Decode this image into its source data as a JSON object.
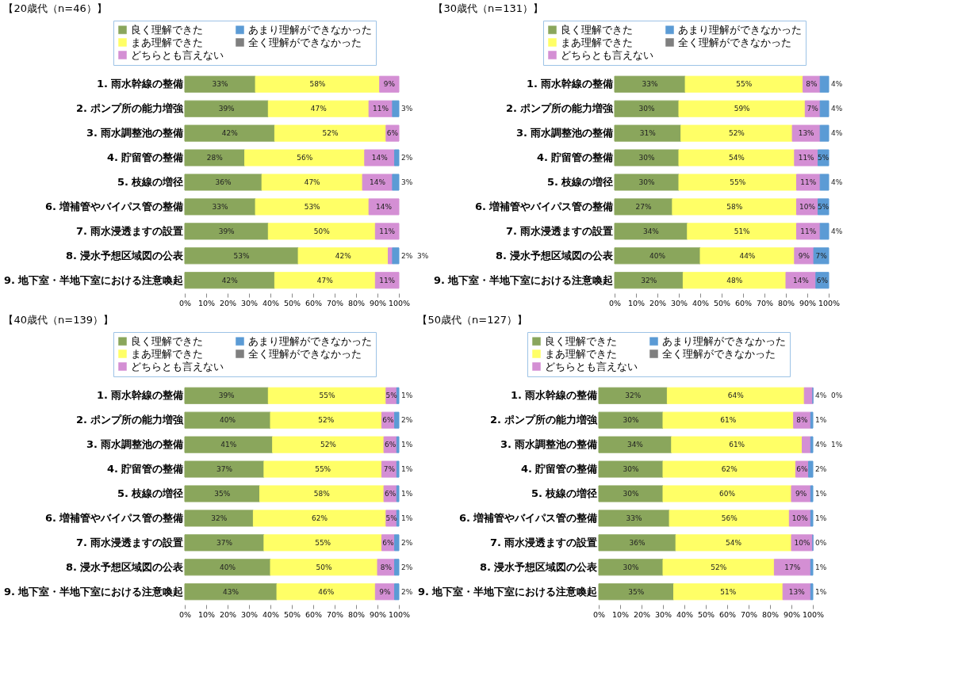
{
  "chart_data": [
    {
      "type": "bar",
      "orientation": "horizontal",
      "stacked": true,
      "title": "【20歳代（n=46）】",
      "legend": "top",
      "categories": [
        "1. 雨水幹線の整備",
        "2. ポンプ所の能力増強",
        "3. 雨水調整池の整備",
        "4. 貯留管の整備",
        "5. 枝線の増径",
        "6. 増補管やバイパス管の整備",
        "7. 雨水浸透ますの設置",
        "8. 浸水予想区域図の公表",
        "9. 地下室・半地下室における注意喚起"
      ],
      "xlim": [
        0,
        100
      ],
      "xticks": [
        {
          "value": 0,
          "label": "0%"
        },
        {
          "value": 10,
          "label": "10%"
        },
        {
          "value": 20,
          "label": "20%"
        },
        {
          "value": 30,
          "label": "30%"
        },
        {
          "value": 40,
          "label": "40%"
        },
        {
          "value": 50,
          "label": "50%"
        },
        {
          "value": 60,
          "label": "60%"
        },
        {
          "value": 70,
          "label": "70%"
        },
        {
          "value": 80,
          "label": "80%"
        },
        {
          "value": 90,
          "label": "90%"
        },
        {
          "value": 100,
          "label": "100%"
        }
      ],
      "series": [
        {
          "name": "良く理解できた",
          "color": "#8aa65c",
          "values": [
            33,
            39,
            42,
            28,
            36,
            33,
            39,
            53,
            42
          ],
          "value_labels": [
            "33%",
            "39%",
            "42%",
            "28%",
            "36%",
            "33%",
            "39%",
            "53%",
            "42%"
          ]
        },
        {
          "name": "まあ理解できた",
          "color": "#ffff66",
          "values": [
            58,
            47,
            52,
            56,
            47,
            53,
            50,
            42,
            47
          ],
          "value_labels": [
            "58%",
            "47%",
            "52%",
            "56%",
            "47%",
            "53%",
            "50%",
            "42%",
            "47%"
          ]
        },
        {
          "name": "どちらとも言えない",
          "color": "#d48fd4",
          "values": [
            9,
            11,
            6,
            14,
            14,
            14,
            11,
            2,
            11
          ],
          "value_labels": [
            "9%",
            "11%",
            "6%",
            "14%",
            "14%",
            "14%",
            "11%",
            "2%",
            "11%"
          ]
        },
        {
          "name": "あまり理解ができなかった",
          "color": "#5b9bd5",
          "values": [
            null,
            3,
            null,
            2,
            3,
            null,
            null,
            3,
            null
          ],
          "value_labels": [
            null,
            "3%",
            null,
            "2%",
            "3%",
            null,
            null,
            "3%",
            null
          ]
        },
        {
          "name": "全く理解ができなかった",
          "color": "#7f7f7f",
          "values": [
            null,
            null,
            null,
            null,
            null,
            null,
            null,
            null,
            null
          ]
        }
      ]
    },
    {
      "type": "bar",
      "orientation": "horizontal",
      "stacked": true,
      "title": "【30歳代（n=131）】",
      "legend": "top",
      "categories": [
        "1. 雨水幹線の整備",
        "2. ポンプ所の能力増強",
        "3. 雨水調整池の整備",
        "4. 貯留管の整備",
        "5. 枝線の増径",
        "6. 増補管やバイパス管の整備",
        "7. 雨水浸透ますの設置",
        "8. 浸水予想区域図の公表",
        "9. 地下室・半地下室における注意喚起"
      ],
      "xlim": [
        0,
        100
      ],
      "xticks": [
        {
          "value": 0,
          "label": "0%"
        },
        {
          "value": 10,
          "label": "10%"
        },
        {
          "value": 20,
          "label": "20%"
        },
        {
          "value": 30,
          "label": "30%"
        },
        {
          "value": 40,
          "label": "40%"
        },
        {
          "value": 50,
          "label": "50%"
        },
        {
          "value": 60,
          "label": "60%"
        },
        {
          "value": 70,
          "label": "70%"
        },
        {
          "value": 80,
          "label": "80%"
        },
        {
          "value": 90,
          "label": "90%"
        },
        {
          "value": 100,
          "label": "100%"
        }
      ],
      "series": [
        {
          "name": "良く理解できた",
          "color": "#8aa65c",
          "values": [
            33,
            30,
            31,
            30,
            30,
            27,
            34,
            40,
            32
          ],
          "value_labels": [
            "33%",
            "30%",
            "31%",
            "30%",
            "30%",
            "27%",
            "34%",
            "40%",
            "32%"
          ]
        },
        {
          "name": "まあ理解できた",
          "color": "#ffff66",
          "values": [
            55,
            59,
            52,
            54,
            55,
            58,
            51,
            44,
            48
          ],
          "value_labels": [
            "55%",
            "59%",
            "52%",
            "54%",
            "55%",
            "58%",
            "51%",
            "44%",
            "48%"
          ]
        },
        {
          "name": "どちらとも言えない",
          "color": "#d48fd4",
          "values": [
            8,
            7,
            13,
            11,
            11,
            10,
            11,
            9,
            14
          ],
          "value_labels": [
            "8%",
            "7%",
            "13%",
            "11%",
            "11%",
            "10%",
            "11%",
            "9%",
            "14%"
          ]
        },
        {
          "name": "あまり理解ができなかった",
          "color": "#5b9bd5",
          "values": [
            4,
            4,
            4,
            5,
            4,
            5,
            4,
            7,
            6
          ],
          "value_labels": [
            "4%",
            "4%",
            "4%",
            "5%",
            "4%",
            "5%",
            "4%",
            "7%",
            "6%"
          ]
        },
        {
          "name": "全く理解ができなかった",
          "color": "#7f7f7f",
          "values": [
            null,
            null,
            null,
            null,
            null,
            null,
            null,
            null,
            null
          ]
        }
      ]
    },
    {
      "type": "bar",
      "orientation": "horizontal",
      "stacked": true,
      "title": "【40歳代（n=139）】",
      "legend": "top",
      "categories": [
        "1. 雨水幹線の整備",
        "2. ポンプ所の能力増強",
        "3. 雨水調整池の整備",
        "4. 貯留管の整備",
        "5. 枝線の増径",
        "6. 増補管やバイパス管の整備",
        "7. 雨水浸透ますの設置",
        "8. 浸水予想区域図の公表",
        "9. 地下室・半地下室における注意喚起"
      ],
      "xlim": [
        0,
        100
      ],
      "xticks": [
        {
          "value": 0,
          "label": "0%"
        },
        {
          "value": 10,
          "label": "10%"
        },
        {
          "value": 20,
          "label": "20%"
        },
        {
          "value": 30,
          "label": "30%"
        },
        {
          "value": 40,
          "label": "40%"
        },
        {
          "value": 50,
          "label": "50%"
        },
        {
          "value": 60,
          "label": "60%"
        },
        {
          "value": 70,
          "label": "70%"
        },
        {
          "value": 80,
          "label": "80%"
        },
        {
          "value": 90,
          "label": "90%"
        },
        {
          "value": 100,
          "label": "100%"
        }
      ],
      "series": [
        {
          "name": "良く理解できた",
          "color": "#8aa65c",
          "values": [
            39,
            40,
            41,
            37,
            35,
            32,
            37,
            40,
            43
          ],
          "value_labels": [
            "39%",
            "40%",
            "41%",
            "37%",
            "35%",
            "32%",
            "37%",
            "40%",
            "43%"
          ]
        },
        {
          "name": "まあ理解できた",
          "color": "#ffff66",
          "values": [
            55,
            52,
            52,
            55,
            58,
            62,
            55,
            50,
            46
          ],
          "value_labels": [
            "55%",
            "52%",
            "52%",
            "55%",
            "58%",
            "62%",
            "55%",
            "50%",
            "46%"
          ]
        },
        {
          "name": "どちらとも言えない",
          "color": "#d48fd4",
          "values": [
            5,
            6,
            6,
            7,
            6,
            5,
            6,
            8,
            9
          ],
          "value_labels": [
            "5%",
            "6%",
            "6%",
            "7%",
            "6%",
            "5%",
            "6%",
            "8%",
            "9%"
          ]
        },
        {
          "name": "あまり理解ができなかった",
          "color": "#5b9bd5",
          "values": [
            1,
            2,
            1,
            1,
            1,
            1,
            2,
            2,
            2
          ],
          "value_labels": [
            "1%",
            "2%",
            "1%",
            "1%",
            "1%",
            "1%",
            "2%",
            "2%",
            "2%"
          ]
        },
        {
          "name": "全く理解ができなかった",
          "color": "#7f7f7f",
          "values": [
            null,
            null,
            null,
            null,
            null,
            null,
            null,
            null,
            null
          ]
        }
      ]
    },
    {
      "type": "bar",
      "orientation": "horizontal",
      "stacked": true,
      "title": "【50歳代（n=127）】",
      "legend": "top",
      "categories": [
        "1. 雨水幹線の整備",
        "2. ポンプ所の能力増強",
        "3. 雨水調整池の整備",
        "4. 貯留管の整備",
        "5. 枝線の増径",
        "6. 増補管やバイパス管の整備",
        "7. 雨水浸透ますの設置",
        "8. 浸水予想区域図の公表",
        "9. 地下室・半地下室における注意喚起"
      ],
      "xlim": [
        0,
        100
      ],
      "xticks": [
        {
          "value": 0,
          "label": "0%"
        },
        {
          "value": 10,
          "label": "10%"
        },
        {
          "value": 20,
          "label": "20%"
        },
        {
          "value": 30,
          "label": "30%"
        },
        {
          "value": 40,
          "label": "40%"
        },
        {
          "value": 50,
          "label": "50%"
        },
        {
          "value": 60,
          "label": "60%"
        },
        {
          "value": 70,
          "label": "70%"
        },
        {
          "value": 80,
          "label": "80%"
        },
        {
          "value": 90,
          "label": "90%"
        },
        {
          "value": 100,
          "label": "100%"
        }
      ],
      "series": [
        {
          "name": "良く理解できた",
          "color": "#8aa65c",
          "values": [
            32,
            30,
            34,
            30,
            30,
            33,
            36,
            30,
            35
          ],
          "value_labels": [
            "32%",
            "30%",
            "34%",
            "30%",
            "30%",
            "33%",
            "36%",
            "30%",
            "35%"
          ]
        },
        {
          "name": "まあ理解できた",
          "color": "#ffff66",
          "values": [
            64,
            61,
            61,
            62,
            60,
            56,
            54,
            52,
            51
          ],
          "value_labels": [
            "64%",
            "61%",
            "61%",
            "62%",
            "60%",
            "56%",
            "54%",
            "52%",
            "51%"
          ]
        },
        {
          "name": "どちらとも言えない",
          "color": "#d48fd4",
          "values": [
            4,
            8,
            4,
            6,
            9,
            10,
            10,
            17,
            13
          ],
          "value_labels": [
            "4%",
            "8%",
            "4%",
            "6%",
            "9%",
            "10%",
            "10%",
            "17%",
            "13%"
          ]
        },
        {
          "name": "あまり理解ができなかった",
          "color": "#5b9bd5",
          "values": [
            0,
            1,
            1,
            2,
            1,
            1,
            0,
            1,
            1
          ],
          "value_labels": [
            "0%",
            "1%",
            "1%",
            "2%",
            "1%",
            "1%",
            "0%",
            "1%",
            "1%"
          ]
        },
        {
          "name": "全く理解ができなかった",
          "color": "#7f7f7f",
          "values": [
            null,
            null,
            null,
            null,
            null,
            null,
            null,
            null,
            null
          ]
        }
      ]
    }
  ]
}
